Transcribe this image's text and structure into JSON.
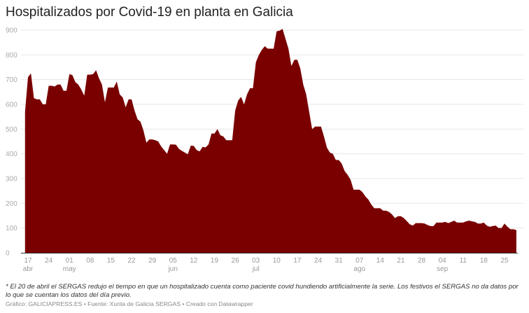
{
  "chart_data": {
    "type": "area",
    "title": "Hospitalizados por Covid-19 en planta en Galicia",
    "xlabel": "",
    "ylabel": "",
    "ylim": [
      0,
      900
    ],
    "yticks": [
      0,
      100,
      200,
      300,
      400,
      500,
      600,
      700,
      800,
      900
    ],
    "grid": true,
    "color": "#7a0000",
    "xticks": [
      {
        "date": "04-17",
        "label": "17",
        "month": "abr"
      },
      {
        "date": "04-24",
        "label": "24",
        "month": ""
      },
      {
        "date": "05-01",
        "label": "01",
        "month": "may"
      },
      {
        "date": "05-08",
        "label": "08",
        "month": ""
      },
      {
        "date": "05-15",
        "label": "15",
        "month": ""
      },
      {
        "date": "05-22",
        "label": "22",
        "month": ""
      },
      {
        "date": "05-29",
        "label": "29",
        "month": ""
      },
      {
        "date": "06-05",
        "label": "05",
        "month": "jun"
      },
      {
        "date": "06-12",
        "label": "12",
        "month": ""
      },
      {
        "date": "06-19",
        "label": "19",
        "month": ""
      },
      {
        "date": "06-26",
        "label": "26",
        "month": ""
      },
      {
        "date": "07-03",
        "label": "03",
        "month": "jul"
      },
      {
        "date": "07-10",
        "label": "10",
        "month": ""
      },
      {
        "date": "07-17",
        "label": "17",
        "month": ""
      },
      {
        "date": "07-24",
        "label": "24",
        "month": ""
      },
      {
        "date": "07-31",
        "label": "31",
        "month": ""
      },
      {
        "date": "08-07",
        "label": "07",
        "month": "ago"
      },
      {
        "date": "08-14",
        "label": "14",
        "month": ""
      },
      {
        "date": "08-21",
        "label": "21",
        "month": ""
      },
      {
        "date": "08-28",
        "label": "28",
        "month": ""
      },
      {
        "date": "09-04",
        "label": "04",
        "month": "sep"
      },
      {
        "date": "09-11",
        "label": "11",
        "month": ""
      },
      {
        "date": "09-18",
        "label": "18",
        "month": ""
      },
      {
        "date": "09-25",
        "label": "25",
        "month": ""
      }
    ],
    "x": [
      "04-16",
      "04-17",
      "04-18",
      "04-19",
      "04-20",
      "04-21",
      "04-22",
      "04-23",
      "04-24",
      "04-25",
      "04-26",
      "04-27",
      "04-28",
      "04-29",
      "04-30",
      "05-01",
      "05-02",
      "05-03",
      "05-04",
      "05-05",
      "05-06",
      "05-07",
      "05-08",
      "05-09",
      "05-10",
      "05-11",
      "05-12",
      "05-13",
      "05-14",
      "05-15",
      "05-16",
      "05-17",
      "05-18",
      "05-19",
      "05-20",
      "05-21",
      "05-22",
      "05-23",
      "05-24",
      "05-25",
      "05-26",
      "05-27",
      "05-28",
      "05-29",
      "05-30",
      "05-31",
      "06-01",
      "06-02",
      "06-03",
      "06-04",
      "06-05",
      "06-06",
      "06-07",
      "06-08",
      "06-09",
      "06-10",
      "06-11",
      "06-12",
      "06-13",
      "06-14",
      "06-15",
      "06-16",
      "06-17",
      "06-18",
      "06-19",
      "06-20",
      "06-21",
      "06-22",
      "06-23",
      "06-24",
      "06-25",
      "06-26",
      "06-27",
      "06-28",
      "06-29",
      "06-30",
      "07-01",
      "07-02",
      "07-03",
      "07-04",
      "07-05",
      "07-06",
      "07-07",
      "07-08",
      "07-09",
      "07-10",
      "07-11",
      "07-12",
      "07-13",
      "07-14",
      "07-15",
      "07-16",
      "07-17",
      "07-18",
      "07-19",
      "07-20",
      "07-21",
      "07-22",
      "07-23",
      "07-24",
      "07-25",
      "07-26",
      "07-27",
      "07-28",
      "07-29",
      "07-30",
      "07-31",
      "08-01",
      "08-02",
      "08-03",
      "08-04",
      "08-05",
      "08-06",
      "08-07",
      "08-08",
      "08-09",
      "08-10",
      "08-11",
      "08-12",
      "08-13",
      "08-14",
      "08-15",
      "08-16",
      "08-17",
      "08-18",
      "08-19",
      "08-20",
      "08-21",
      "08-22",
      "08-23",
      "08-24",
      "08-25",
      "08-26",
      "08-27",
      "08-28",
      "08-29",
      "08-30",
      "08-31",
      "09-01",
      "09-02",
      "09-03",
      "09-04",
      "09-05",
      "09-06",
      "09-07",
      "09-08",
      "09-09",
      "09-10",
      "09-11",
      "09-12",
      "09-13",
      "09-14",
      "09-15",
      "09-16",
      "09-17",
      "09-18",
      "09-19",
      "09-20",
      "09-21",
      "09-22",
      "09-23",
      "09-24",
      "09-25",
      "09-26",
      "09-27",
      "09-28",
      "09-29"
    ],
    "values": [
      570,
      710,
      725,
      625,
      620,
      620,
      600,
      600,
      675,
      675,
      672,
      680,
      680,
      655,
      655,
      722,
      718,
      690,
      680,
      660,
      635,
      720,
      720,
      722,
      738,
      705,
      680,
      608,
      668,
      668,
      668,
      692,
      640,
      628,
      588,
      620,
      620,
      575,
      540,
      530,
      495,
      445,
      458,
      458,
      455,
      450,
      430,
      415,
      400,
      438,
      438,
      437,
      420,
      412,
      405,
      398,
      433,
      432,
      415,
      410,
      428,
      426,
      438,
      482,
      482,
      500,
      475,
      470,
      455,
      455,
      455,
      575,
      615,
      630,
      600,
      640,
      665,
      665,
      770,
      800,
      820,
      835,
      825,
      825,
      825,
      895,
      898,
      905,
      865,
      825,
      755,
      780,
      780,
      745,
      680,
      640,
      570,
      500,
      510,
      510,
      510,
      470,
      425,
      405,
      400,
      375,
      375,
      360,
      330,
      315,
      295,
      255,
      255,
      255,
      245,
      228,
      215,
      195,
      180,
      180,
      180,
      170,
      170,
      165,
      155,
      140,
      148,
      148,
      140,
      128,
      115,
      110,
      120,
      120,
      120,
      118,
      112,
      108,
      108,
      122,
      122,
      122,
      125,
      120,
      125,
      130,
      122,
      122,
      122,
      127,
      130,
      127,
      125,
      118,
      118,
      122,
      110,
      105,
      108,
      110,
      100,
      100,
      118,
      105,
      95,
      95,
      92
    ]
  },
  "notes": {
    "footnote": "* El 20 de abril el SERGAS redujo el tiempo en que un hospitalizado cuenta como paciente covid hundiendo artificialmente la serie. Los festivos el SERGAS no da datos por lo que se cuentan los datos del día previo.",
    "credit": "Gráfico: GALICIAPRESS.ES • Fuente: Xunta de Galicia SERGAS • Creado con Datawrapper"
  }
}
